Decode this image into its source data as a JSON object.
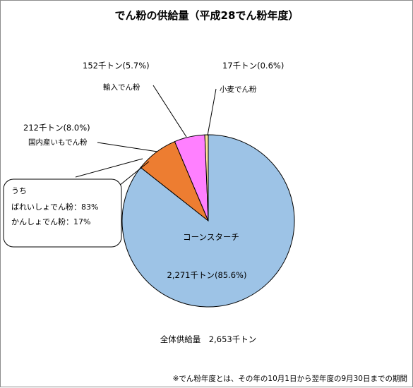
{
  "chart_data": {
    "type": "pie",
    "title": "でん粉の供給量（平成28でん粉年度）",
    "slices": [
      {
        "name": "コーンスターチ",
        "value_label": "2,271千トン(85.6%)",
        "value": 2271,
        "percent": 85.6,
        "color": "#9dc3e6"
      },
      {
        "name": "国内産いもでん粉",
        "value_label": "212千トン(8.0%)",
        "value": 212,
        "percent": 8.0,
        "color": "#ed7d31"
      },
      {
        "name": "輸入でん粉",
        "value_label": "152千トン(5.7%)",
        "value": 152,
        "percent": 5.7,
        "color": "#ff80ff"
      },
      {
        "name": "小麦でん粉",
        "value_label": "17千トン(0.6%)",
        "value": 17,
        "percent": 0.6,
        "color": "#ffe699"
      }
    ],
    "callout": {
      "line1": "うち",
      "line2": "ばれいしょでん粉：83%",
      "line3": "かんしょでん粉：17%"
    },
    "total_label": "全体供給量　2,653千トン",
    "footnote": "※でん粉年度とは、その年の10月1日から翌年度の9月30日までの期間"
  }
}
